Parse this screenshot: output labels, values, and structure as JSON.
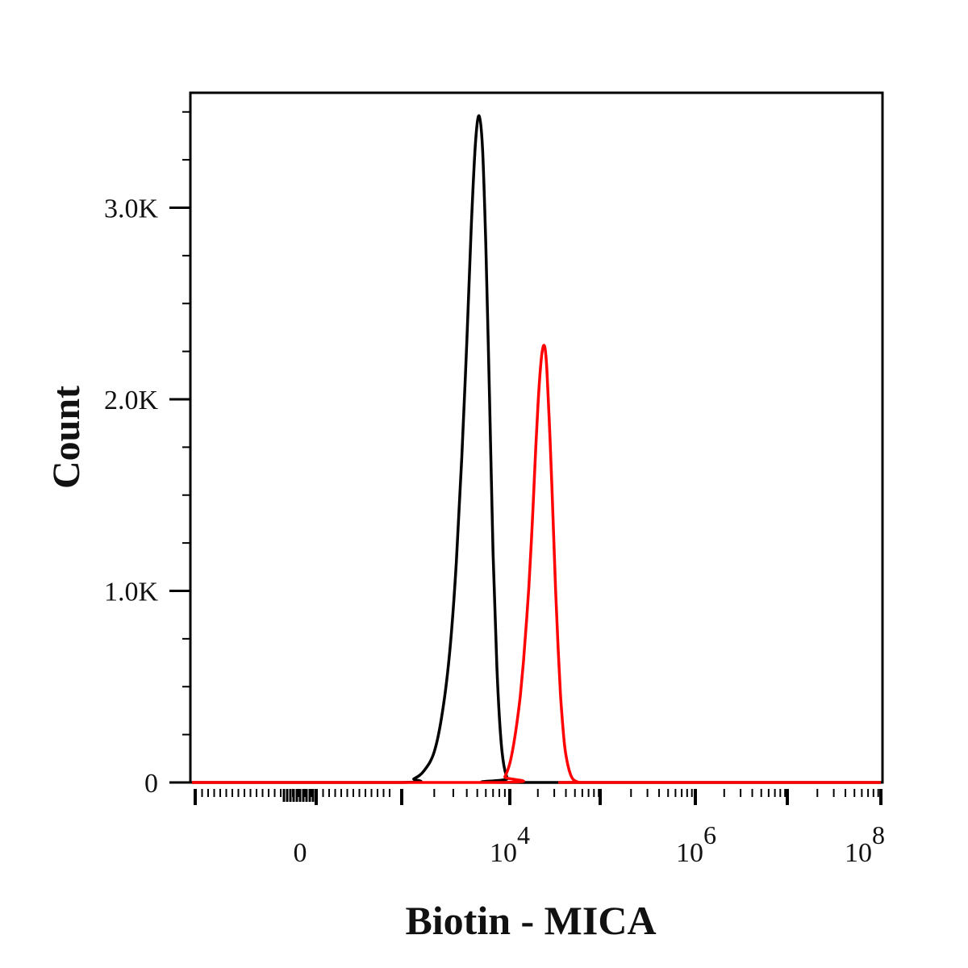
{
  "chart_data": {
    "type": "line",
    "title": "",
    "xlabel": "Biotin - MICA",
    "ylabel": "Count",
    "x_scale": "biexponential",
    "x_ticks": [
      {
        "value": 0,
        "mantissa": "0",
        "exponent": ""
      },
      {
        "value": 10000,
        "mantissa": "10",
        "exponent": "4"
      },
      {
        "value": 1000000,
        "mantissa": "10",
        "exponent": "6"
      },
      {
        "value": 100000000,
        "mantissa": "10",
        "exponent": "8"
      }
    ],
    "y_ticks": [
      {
        "value": 0,
        "label": "0"
      },
      {
        "value": 1000,
        "label": "1.0K"
      },
      {
        "value": 2000,
        "label": "2.0K"
      },
      {
        "value": 3000,
        "label": "3.0K"
      }
    ],
    "ylim": [
      0,
      3600
    ],
    "grid": false,
    "legend": "none",
    "series": [
      {
        "color": "#000000",
        "x": [
          1000,
          1300,
          1600,
          2000,
          2400,
          2800,
          3200,
          3600,
          4000,
          4400,
          4800,
          5200,
          5600,
          6000,
          6500,
          7000,
          7600,
          8200,
          8800,
          9500,
          10000
        ],
        "y": [
          0,
          20,
          60,
          160,
          380,
          700,
          1150,
          1700,
          2300,
          2900,
          3330,
          3480,
          3300,
          2800,
          2000,
          1200,
          600,
          250,
          90,
          20,
          0
        ]
      },
      {
        "color": "#ff0000",
        "x": [
          8000,
          9000,
          10000,
          11000,
          12000,
          13000,
          14000,
          15000,
          16000,
          17000,
          18000,
          19000,
          20000,
          21000,
          22000,
          23000,
          24000,
          25000,
          27000,
          29000,
          31000,
          33000,
          35000,
          37000,
          39000,
          42000,
          45000,
          48000,
          52000,
          56000,
          60000
        ],
        "y": [
          0,
          30,
          100,
          200,
          320,
          460,
          630,
          820,
          1020,
          1250,
          1500,
          1750,
          1960,
          2120,
          2230,
          2280,
          2260,
          2150,
          1800,
          1400,
          1000,
          700,
          460,
          300,
          180,
          90,
          40,
          15,
          5,
          0,
          0
        ]
      }
    ]
  }
}
